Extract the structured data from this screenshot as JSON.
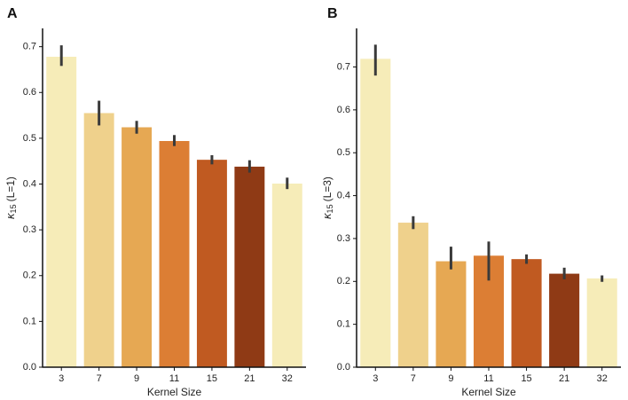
{
  "chart_data": [
    {
      "type": "bar",
      "panel_label": "A",
      "categories": [
        "3",
        "7",
        "9",
        "11",
        "15",
        "21",
        "32"
      ],
      "values": [
        0.678,
        0.555,
        0.524,
        0.494,
        0.453,
        0.438,
        0.401
      ],
      "errors_low": [
        0.658,
        0.528,
        0.51,
        0.483,
        0.443,
        0.425,
        0.389
      ],
      "errors_high": [
        0.703,
        0.582,
        0.538,
        0.507,
        0.463,
        0.452,
        0.414
      ],
      "colors": [
        "#f6ecb8",
        "#efd18c",
        "#e6a853",
        "#dc7e34",
        "#c05a21",
        "#8f3a15",
        "#f6ecb8"
      ],
      "xlabel": "Kernel Size",
      "ylabel_main": "κ",
      "ylabel_sub": "15",
      "ylabel_rest": "(L=1)",
      "ylim": [
        0.0,
        0.74
      ],
      "yticks": [
        "0.0",
        "0.1",
        "0.2",
        "0.3",
        "0.4",
        "0.5",
        "0.6",
        "0.7"
      ]
    },
    {
      "type": "bar",
      "panel_label": "B",
      "categories": [
        "3",
        "7",
        "9",
        "11",
        "15",
        "21",
        "32"
      ],
      "values": [
        0.719,
        0.337,
        0.247,
        0.26,
        0.252,
        0.218,
        0.207
      ],
      "errors_low": [
        0.68,
        0.322,
        0.228,
        0.202,
        0.241,
        0.205,
        0.199
      ],
      "errors_high": [
        0.752,
        0.352,
        0.281,
        0.293,
        0.263,
        0.232,
        0.214
      ],
      "colors": [
        "#f6ecb8",
        "#efd18c",
        "#e6a853",
        "#dc7e34",
        "#c05a21",
        "#8f3a15",
        "#f6ecb8"
      ],
      "xlabel": "Kernel Size",
      "ylabel_main": "κ",
      "ylabel_sub": "15",
      "ylabel_rest": "(L=3)",
      "ylim": [
        0.0,
        0.79
      ],
      "yticks": [
        "0.0",
        "0.1",
        "0.2",
        "0.3",
        "0.4",
        "0.5",
        "0.6",
        "0.7"
      ]
    }
  ]
}
